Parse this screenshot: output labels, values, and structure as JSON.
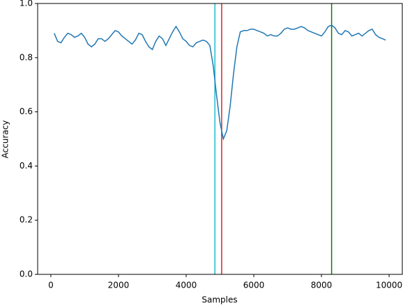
{
  "chart_data": {
    "type": "line",
    "x_label": "Samples",
    "y_label": "Accuracy",
    "x": [
      100,
      200,
      300,
      400,
      500,
      600,
      700,
      800,
      900,
      1000,
      1100,
      1200,
      1300,
      1400,
      1500,
      1600,
      1700,
      1800,
      1900,
      2000,
      2100,
      2200,
      2300,
      2400,
      2500,
      2600,
      2700,
      2800,
      2900,
      3000,
      3100,
      3200,
      3300,
      3400,
      3500,
      3600,
      3700,
      3800,
      3900,
      4000,
      4100,
      4200,
      4300,
      4400,
      4500,
      4600,
      4700,
      4800,
      4900,
      5000,
      5100,
      5200,
      5300,
      5400,
      5500,
      5600,
      5700,
      5800,
      5900,
      6000,
      6100,
      6200,
      6300,
      6400,
      6500,
      6600,
      6700,
      6800,
      6900,
      7000,
      7100,
      7200,
      7300,
      7400,
      7500,
      7600,
      7700,
      7800,
      7900,
      8000,
      8100,
      8200,
      8300,
      8400,
      8500,
      8600,
      8700,
      8800,
      8900,
      9000,
      9100,
      9200,
      9300,
      9400,
      9500,
      9600,
      9700,
      9800,
      9900
    ],
    "series": [
      {
        "color": "#1f77b4",
        "values": [
          0.89,
          0.86,
          0.855,
          0.875,
          0.89,
          0.885,
          0.875,
          0.88,
          0.89,
          0.875,
          0.85,
          0.84,
          0.85,
          0.87,
          0.87,
          0.86,
          0.87,
          0.885,
          0.9,
          0.895,
          0.88,
          0.87,
          0.86,
          0.85,
          0.865,
          0.89,
          0.885,
          0.86,
          0.84,
          0.83,
          0.86,
          0.88,
          0.87,
          0.845,
          0.87,
          0.895,
          0.915,
          0.895,
          0.87,
          0.86,
          0.845,
          0.84,
          0.855,
          0.86,
          0.865,
          0.86,
          0.845,
          0.77,
          0.66,
          0.56,
          0.5,
          0.53,
          0.62,
          0.74,
          0.84,
          0.895,
          0.9,
          0.9,
          0.905,
          0.905,
          0.9,
          0.895,
          0.89,
          0.88,
          0.885,
          0.88,
          0.88,
          0.89,
          0.905,
          0.91,
          0.905,
          0.905,
          0.91,
          0.915,
          0.91,
          0.9,
          0.895,
          0.89,
          0.885,
          0.88,
          0.895,
          0.915,
          0.92,
          0.91,
          0.89,
          0.885,
          0.9,
          0.895,
          0.88,
          0.885,
          0.89,
          0.88,
          0.89,
          0.9,
          0.905,
          0.885,
          0.875,
          0.87,
          0.865
        ]
      }
    ],
    "vlines": [
      {
        "x": 4850,
        "color": "#17becf"
      },
      {
        "x": 5050,
        "color": "#d62728"
      },
      {
        "x": 8300,
        "color": "#008000"
      }
    ],
    "xlim": [
      -390,
      10390
    ],
    "ylim": [
      0,
      1
    ],
    "xticks": [
      0,
      2000,
      4000,
      6000,
      8000,
      10000
    ],
    "yticks": [
      {
        "value": 0,
        "label": "0.0"
      },
      {
        "value": 0.2,
        "label": "0.2"
      },
      {
        "value": 0.4,
        "label": "0.4"
      },
      {
        "value": 0.6,
        "label": "0.6"
      },
      {
        "value": 0.8,
        "label": "0.8"
      },
      {
        "value": 1,
        "label": "1.0"
      }
    ]
  }
}
